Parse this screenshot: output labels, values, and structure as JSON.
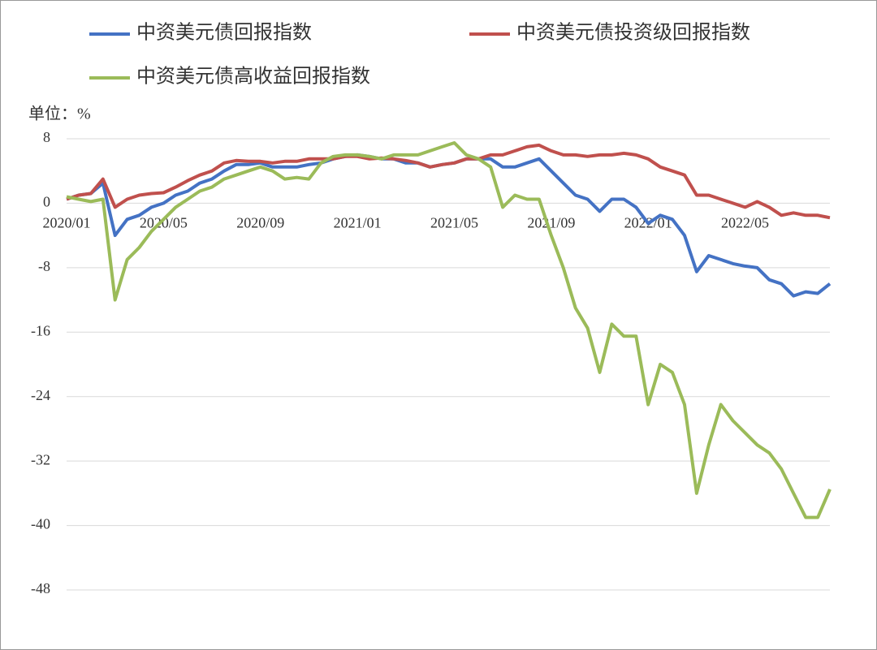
{
  "chart_data": {
    "type": "line",
    "y_label": "单位：%",
    "categories": [
      "2020/01",
      null,
      null,
      null,
      null,
      null,
      null,
      null,
      "2020/05",
      null,
      null,
      null,
      null,
      null,
      null,
      null,
      "2020/09",
      null,
      null,
      null,
      null,
      null,
      null,
      null,
      "2021/01",
      null,
      null,
      null,
      null,
      null,
      null,
      null,
      "2021/05",
      null,
      null,
      null,
      null,
      null,
      null,
      null,
      "2021/09",
      null,
      null,
      null,
      null,
      null,
      null,
      null,
      "2022/01",
      null,
      null,
      null,
      null,
      null,
      null,
      null,
      "2022/05",
      null,
      null,
      null,
      null,
      null,
      null,
      null
    ],
    "series": [
      {
        "name": "中资美元债回报指数",
        "color": "#4472c4",
        "values": [
          0.5,
          1,
          1.2,
          2.5,
          -4,
          -2,
          -1.5,
          -0.5,
          0,
          1,
          1.5,
          2.5,
          3,
          4,
          4.8,
          4.8,
          5,
          4.5,
          4.5,
          4.5,
          4.8,
          5,
          5.5,
          5.8,
          6,
          5.8,
          5.5,
          5.5,
          5,
          5,
          4.5,
          4.8,
          5,
          5.5,
          5.5,
          5.5,
          4.5,
          4.5,
          5,
          5.5,
          4,
          2.5,
          1,
          0.5,
          -1,
          0.5,
          0.5,
          -0.5,
          -2.5,
          -1.5,
          -2,
          -4,
          -8.5,
          -6.5,
          -7,
          -7.5,
          -7.8,
          -8,
          -9.5,
          -10,
          -11.5,
          -11,
          -11.2,
          -10
        ]
      },
      {
        "name": "中资美元债投资级回报指数",
        "color": "#c0504d",
        "values": [
          0.5,
          1,
          1.2,
          3,
          -0.5,
          0.5,
          1,
          1.2,
          1.3,
          2,
          2.8,
          3.5,
          4,
          5,
          5.3,
          5.2,
          5.2,
          5,
          5.2,
          5.2,
          5.5,
          5.5,
          5.5,
          5.8,
          5.8,
          5.5,
          5.6,
          5.5,
          5.3,
          5,
          4.5,
          4.8,
          5,
          5.5,
          5.5,
          6,
          6,
          6.5,
          7,
          7.2,
          6.5,
          6,
          6,
          5.8,
          6,
          6,
          6.2,
          6,
          5.5,
          4.5,
          4,
          3.5,
          1,
          1,
          0.5,
          0,
          -0.5,
          0.2,
          -0.5,
          -1.5,
          -1.2,
          -1.5,
          -1.5,
          -1.8
        ]
      },
      {
        "name": "中资美元债高收益回报指数",
        "color": "#9bbb59",
        "values": [
          0.8,
          0.5,
          0.2,
          0.5,
          -12,
          -7,
          -5.5,
          -3.5,
          -2,
          -0.5,
          0.5,
          1.5,
          2,
          3,
          3.5,
          4,
          4.5,
          4,
          3,
          3.2,
          3,
          5,
          5.8,
          6,
          6,
          5.8,
          5.5,
          6,
          6,
          6,
          6.5,
          7,
          7.5,
          6,
          5.5,
          4.5,
          -0.5,
          1,
          0.5,
          0.5,
          -4,
          -8,
          -13,
          -15.5,
          -21,
          -15,
          -16.5,
          -16.5,
          -25,
          -20,
          -21,
          -25,
          -36,
          -30,
          -25,
          -27,
          -28.5,
          -30,
          -31,
          -33,
          -36,
          -39,
          -39,
          -35.5
        ]
      }
    ],
    "ylim": [
      -48,
      8
    ],
    "yticks": [
      -48,
      -40,
      -32,
      -24,
      -16,
      -8,
      0,
      8
    ],
    "grid": true
  }
}
